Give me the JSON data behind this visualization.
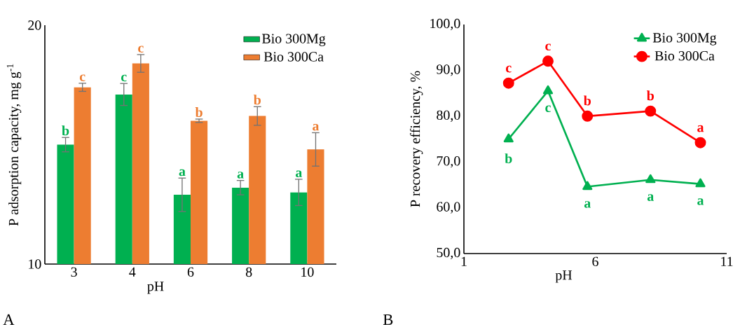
{
  "chart_data": [
    {
      "type": "bar",
      "ylabel": "P adsorption capacity, mg g$^{-1}$",
      "xlabel": "pH",
      "categories": [
        "3",
        "4",
        "6",
        "8",
        "10"
      ],
      "series": [
        {
          "name": "Bio 300Mg",
          "color": "#00b050",
          "values": [
            15.0,
            17.1,
            12.9,
            13.2,
            13.0
          ],
          "errors": [
            0.3,
            0.46,
            0.7,
            0.3,
            0.55
          ]
        },
        {
          "name": "Bio 300Ca",
          "color": "#ed7d31",
          "values": [
            17.4,
            18.4,
            16.0,
            16.2,
            14.8
          ],
          "errors": [
            0.17,
            0.37,
            0.07,
            0.39,
            0.7
          ]
        }
      ],
      "ylim": [
        10,
        20
      ],
      "yticks": [
        10,
        20
      ],
      "grid": false,
      "legend": "top right",
      "annotations": [
        {
          "text": "b",
          "x": "3",
          "y": 15.0
        },
        {
          "text": "c",
          "x": "3",
          "y": 17.4
        },
        {
          "text": "c",
          "x": "4",
          "y": 17.1
        },
        {
          "text": "c",
          "x": "4",
          "y": 18.4
        },
        {
          "text": "a",
          "x": "6",
          "y": 12.9
        },
        {
          "text": "b",
          "x": "6",
          "y": 16.0
        },
        {
          "text": "a",
          "x": "8",
          "y": 13.2
        },
        {
          "text": "b",
          "x": "8",
          "y": 16.2
        },
        {
          "text": "a",
          "x": "10",
          "y": 13.0
        },
        {
          "text": "a",
          "x": "10",
          "y": 14.8
        },
        "A"
      ]
    },
    {
      "type": "line",
      "ylabel": "P recovery efficiency, %",
      "xlabel": "pH",
      "series": [
        {
          "name": "Bio 300Mg",
          "color": "#00b050",
          "marker": "triangle",
          "x": [
            2.7,
            4.2,
            5.7,
            8.1,
            10.0
          ],
          "values": [
            75.0,
            85.5,
            64.6,
            66.1,
            65.2
          ]
        },
        {
          "name": "Bio 300Ca",
          "color": "#ff0000",
          "marker": "circle",
          "x": [
            2.7,
            4.2,
            5.7,
            8.1,
            10.0
          ],
          "values": [
            87.2,
            92.0,
            80.0,
            81.1,
            74.2
          ]
        }
      ],
      "xlim": [
        1,
        11
      ],
      "xticks": [
        1,
        6,
        11
      ],
      "ylim": [
        50,
        100
      ],
      "yticks": [
        {
          "value": 50,
          "label": "50,0"
        },
        {
          "value": 60,
          "label": "60,0"
        },
        {
          "value": 70,
          "label": "70,0"
        },
        {
          "value": 80,
          "label": "80,0"
        },
        {
          "value": 90,
          "label": "90,0"
        },
        {
          "value": 100,
          "label": "100,0"
        }
      ],
      "grid": false,
      "legend": "top right",
      "line_style": "solid",
      "annotations": [
        {
          "text": "b",
          "x": 2.7,
          "y": 75.0
        },
        {
          "text": "c",
          "x": 4.2,
          "y": 85.5
        },
        {
          "text": "a",
          "x": 5.7,
          "y": 64.6
        },
        {
          "text": "a",
          "x": 8.1,
          "y": 66.1
        },
        {
          "text": "a",
          "x": 10.0,
          "y": 65.2
        },
        {
          "text": "c",
          "x": 2.7,
          "y": 87.2
        },
        {
          "text": "c",
          "x": 4.2,
          "y": 92.0
        },
        {
          "text": "b",
          "x": 5.7,
          "y": 80.0
        },
        {
          "text": "b",
          "x": 8.1,
          "y": 81.1
        },
        {
          "text": "a",
          "x": 10.0,
          "y": 74.2
        },
        "B"
      ]
    }
  ]
}
